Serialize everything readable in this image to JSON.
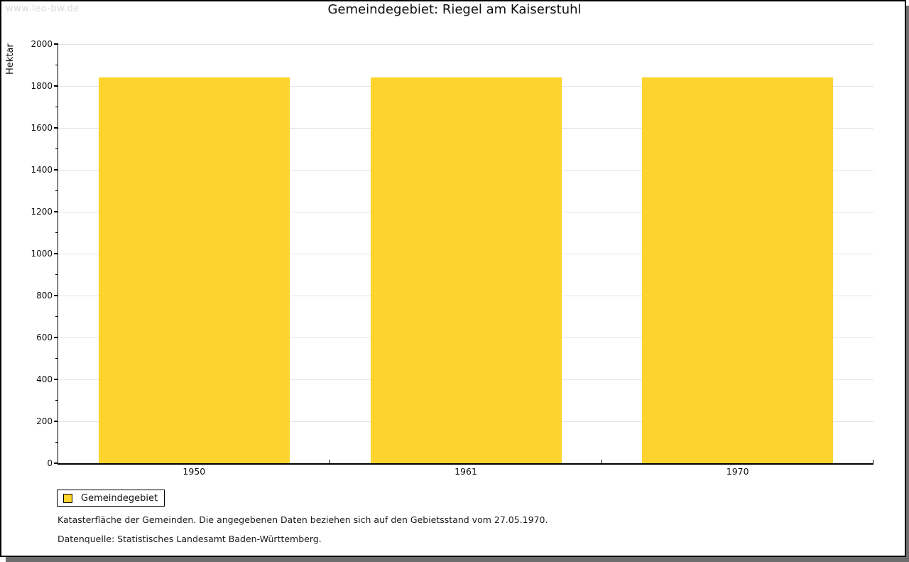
{
  "watermark": "www.leo-bw.de",
  "title": "Gemeindegebiet: Riegel am Kaiserstuhl",
  "chart_data": {
    "type": "bar",
    "title": "Gemeindegebiet: Riegel am Kaiserstuhl",
    "categories": [
      "1950",
      "1961",
      "1970"
    ],
    "series": [
      {
        "name": "Gemeindegebiet",
        "values": [
          1840,
          1840,
          1840
        ]
      }
    ],
    "xlabel": "",
    "ylabel": "Hektar",
    "ylim": [
      0,
      2000
    ],
    "ytick_step": 200,
    "yminor_step": 100,
    "grid": true,
    "bar_color": "#fcd42d",
    "legend_position": "below-left"
  },
  "legend": {
    "items": [
      {
        "label": "Gemeindegebiet",
        "color": "#fcd42d"
      }
    ]
  },
  "footnotes": [
    "Katasterfläche der Gemeinden. Die angegebenen Daten beziehen sich auf den Gebietsstand vom 27.05.1970.",
    "Datenquelle: Statistisches Landesamt Baden-Württemberg."
  ],
  "colors": {
    "bar": "#fcd42d",
    "grid": "#e2e2e2",
    "axis": "#000000",
    "watermark": "#d9d9d9",
    "shadow": "#6e6e6e"
  }
}
